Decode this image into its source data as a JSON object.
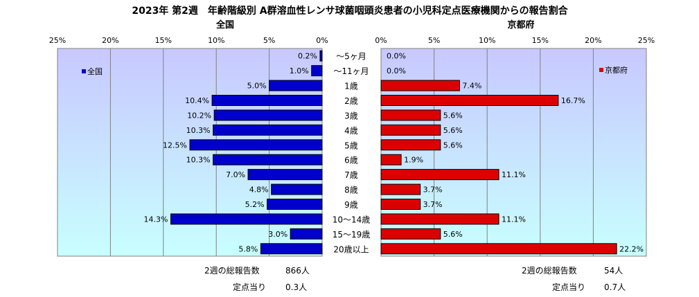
{
  "title": "2023年 第2週　年齢階級別 A群溶血性レンサ球菌咽頭炎患者の小児科定点医療機関からの報告割合",
  "categories": [
    "～5ヶ月",
    "～11ヶ月",
    "1歳",
    "2歳",
    "3歳",
    "4歳",
    "5歳",
    "6歳",
    "7歳",
    "8歳",
    "9歳",
    "10～14歳",
    "15～19歳",
    "20歳以上"
  ],
  "colors": {
    "national": "#0000cc",
    "kyoto": "#dd0000",
    "panel_top": "#c8c8ff",
    "panel_bottom": "#c8ffff"
  },
  "chart_data": [
    {
      "type": "bar",
      "orientation": "horizontal",
      "direction": "right-to-left",
      "title": "全国",
      "xlim": [
        0,
        25
      ],
      "ticks": [
        "0%",
        "5%",
        "10%",
        "15%",
        "20%",
        "25%"
      ],
      "legend": "全国",
      "legend_position": "top-left",
      "categories": [
        "～5ヶ月",
        "～11ヶ月",
        "1歳",
        "2歳",
        "3歳",
        "4歳",
        "5歳",
        "6歳",
        "7歳",
        "8歳",
        "9歳",
        "10～14歳",
        "15～19歳",
        "20歳以上"
      ],
      "values": [
        0.2,
        1.0,
        5.0,
        10.4,
        10.2,
        10.3,
        12.5,
        10.3,
        7.0,
        4.8,
        5.2,
        14.3,
        3.0,
        5.8
      ],
      "labels": [
        "0.2%",
        "1.0%",
        "5.0%",
        "10.4%",
        "10.2%",
        "10.3%",
        "12.5%",
        "10.3%",
        "7.0%",
        "4.8%",
        "5.2%",
        "14.3%",
        "3.0%",
        "5.8%"
      ],
      "grid": true
    },
    {
      "type": "bar",
      "orientation": "horizontal",
      "direction": "left-to-right",
      "title": "京都府",
      "xlim": [
        0,
        25
      ],
      "ticks": [
        "0%",
        "5%",
        "10%",
        "15%",
        "20%",
        "25%"
      ],
      "legend": "京都府",
      "legend_position": "top-right",
      "categories": [
        "～5ヶ月",
        "～11ヶ月",
        "1歳",
        "2歳",
        "3歳",
        "4歳",
        "5歳",
        "6歳",
        "7歳",
        "8歳",
        "9歳",
        "10～14歳",
        "15～19歳",
        "20歳以上"
      ],
      "values": [
        0.0,
        0.0,
        7.4,
        16.7,
        5.6,
        5.6,
        5.6,
        1.9,
        11.1,
        3.7,
        3.7,
        11.1,
        5.6,
        22.2
      ],
      "labels": [
        "0.0%",
        "0.0%",
        "7.4%",
        "16.7%",
        "5.6%",
        "5.6%",
        "5.6%",
        "1.9%",
        "11.1%",
        "3.7%",
        "3.7%",
        "11.1%",
        "5.6%",
        "22.2%"
      ],
      "grid": true
    }
  ],
  "footer": {
    "national": {
      "total_label": "2週の総報告数",
      "total_value": "866人",
      "per_label": "定点当り",
      "per_value": "0.3人"
    },
    "kyoto": {
      "total_label": "2週の総報告数",
      "total_value": "54人",
      "per_label": "定点当り",
      "per_value": "0.7人"
    }
  }
}
